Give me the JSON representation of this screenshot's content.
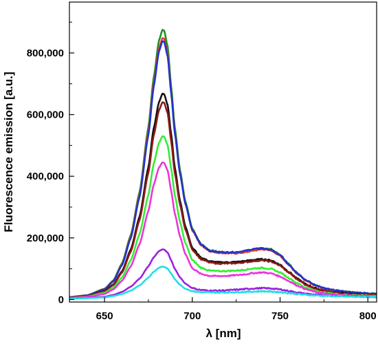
{
  "chart_data": {
    "type": "line",
    "xlabel": "λ [nm]",
    "ylabel": "Fluorescence emission [a.u.]",
    "xlim": [
      630,
      805
    ],
    "ylim": [
      -8000,
      965000
    ],
    "xticks": [
      650,
      700,
      750,
      800
    ],
    "xtick_labels": [
      "650",
      "700",
      "750",
      "800"
    ],
    "yticks": [
      0,
      200000,
      400000,
      600000,
      800000
    ],
    "ytick_labels": [
      "0",
      "200,000",
      "400,000",
      "600,000",
      "800,000"
    ],
    "grid": false,
    "legend": "none",
    "profile": {
      "x": [
        630,
        640,
        650,
        655,
        660,
        665,
        670,
        675,
        678,
        681,
        683,
        684,
        686,
        688,
        690,
        693,
        696,
        700,
        705,
        710,
        715,
        720,
        725,
        730,
        735,
        740,
        745,
        750,
        755,
        760,
        765,
        770,
        775,
        780,
        785,
        790,
        795,
        800,
        805
      ],
      "value_note": "relative shape"
    },
    "series": [
      {
        "color": "#1f8f1f",
        "values": [
          8000,
          14000,
          35000,
          62000,
          118000,
          210000,
          350000,
          560000,
          720000,
          840000,
          875000,
          872000,
          820000,
          690000,
          560000,
          420000,
          320000,
          230000,
          180000,
          160000,
          155000,
          153000,
          153000,
          156000,
          162000,
          167000,
          163000,
          145000,
          115000,
          85000,
          62000,
          47000,
          37000,
          31000,
          27000,
          24000,
          22000,
          20000,
          19000
        ]
      },
      {
        "color": "#e83a2a",
        "values": [
          8000,
          13500,
          34000,
          60000,
          114000,
          204000,
          340000,
          545000,
          700000,
          815000,
          848000,
          846000,
          795000,
          672000,
          545000,
          410000,
          312000,
          224000,
          176000,
          157000,
          152000,
          150000,
          150000,
          153000,
          159000,
          163000,
          159000,
          142000,
          112000,
          83000,
          60000,
          46000,
          36000,
          30000,
          26000,
          23000,
          21000,
          19500,
          18500
        ]
      },
      {
        "color": "#2233cc",
        "values": [
          8000,
          13000,
          33000,
          59000,
          112000,
          200000,
          334000,
          535000,
          690000,
          805000,
          838000,
          836000,
          788000,
          668000,
          542000,
          408000,
          312000,
          226000,
          178000,
          158000,
          154000,
          153000,
          154000,
          158000,
          164000,
          166000,
          161000,
          144000,
          114000,
          85000,
          62000,
          47000,
          37000,
          31000,
          27000,
          24000,
          22000,
          20500,
          19500
        ]
      },
      {
        "color": "#111111",
        "values": [
          7000,
          11500,
          28000,
          49000,
          92000,
          163000,
          270000,
          430000,
          555000,
          640000,
          668000,
          666000,
          630000,
          535000,
          430000,
          320000,
          238000,
          168000,
          136000,
          124000,
          121000,
          121000,
          122000,
          125000,
          129000,
          131000,
          127000,
          113000,
          90000,
          67000,
          49000,
          37000,
          29000,
          24000,
          21000,
          19000,
          17000,
          16000,
          15000
        ]
      },
      {
        "color": "#8b1a1a",
        "values": [
          7000,
          11000,
          27000,
          47000,
          88000,
          156000,
          259000,
          412000,
          532000,
          614000,
          640000,
          638000,
          604000,
          512000,
          412000,
          308000,
          228000,
          162000,
          131000,
          120000,
          117000,
          117000,
          118000,
          121000,
          125000,
          127000,
          123000,
          110000,
          87000,
          65000,
          47000,
          36000,
          28000,
          23000,
          20000,
          18000,
          16500,
          15500,
          14500
        ]
      },
      {
        "color": "#33ee33",
        "values": [
          6000,
          9500,
          22000,
          39000,
          72000,
          128000,
          213000,
          340000,
          440000,
          508000,
          530000,
          528000,
          500000,
          424000,
          340000,
          252000,
          184000,
          128000,
          103000,
          94000,
          92000,
          93000,
          94000,
          97000,
          101000,
          103000,
          99000,
          88000,
          70000,
          52000,
          38000,
          29000,
          23000,
          19000,
          16000,
          14500,
          13500,
          12500,
          12000
        ]
      },
      {
        "color": "#ee33dd",
        "values": [
          5500,
          8500,
          18000,
          33000,
          61000,
          108000,
          180000,
          288000,
          372000,
          428000,
          445000,
          443000,
          418000,
          352000,
          280000,
          205000,
          148000,
          102000,
          83000,
          77000,
          76000,
          77000,
          79000,
          82000,
          86000,
          88000,
          85000,
          75000,
          60000,
          45000,
          33000,
          25000,
          20000,
          16500,
          14000,
          12500,
          11500,
          11000,
          10500
        ]
      },
      {
        "color": "#9a22dd",
        "values": [
          4000,
          5500,
          9000,
          15000,
          25000,
          42000,
          68000,
          108000,
          137000,
          157000,
          163000,
          162000,
          152000,
          127000,
          100000,
          72000,
          52000,
          37000,
          31000,
          29000,
          29000,
          30000,
          32000,
          34000,
          36000,
          37000,
          36000,
          33000,
          28000,
          23000,
          19000,
          16000,
          14000,
          12500,
          11500,
          10500,
          10000,
          9500,
          9000
        ]
      },
      {
        "color": "#22dde8",
        "values": [
          3000,
          4500,
          7000,
          11500,
          18000,
          29000,
          46000,
          71000,
          90000,
          103000,
          107000,
          106000,
          100000,
          84000,
          66000,
          48000,
          35000,
          27000,
          24000,
          23000,
          23000,
          23500,
          24000,
          25000,
          26000,
          27000,
          26000,
          24000,
          21000,
          18000,
          15500,
          13500,
          12000,
          11000,
          10000,
          9500,
          9000,
          8500,
          8000
        ]
      }
    ]
  }
}
